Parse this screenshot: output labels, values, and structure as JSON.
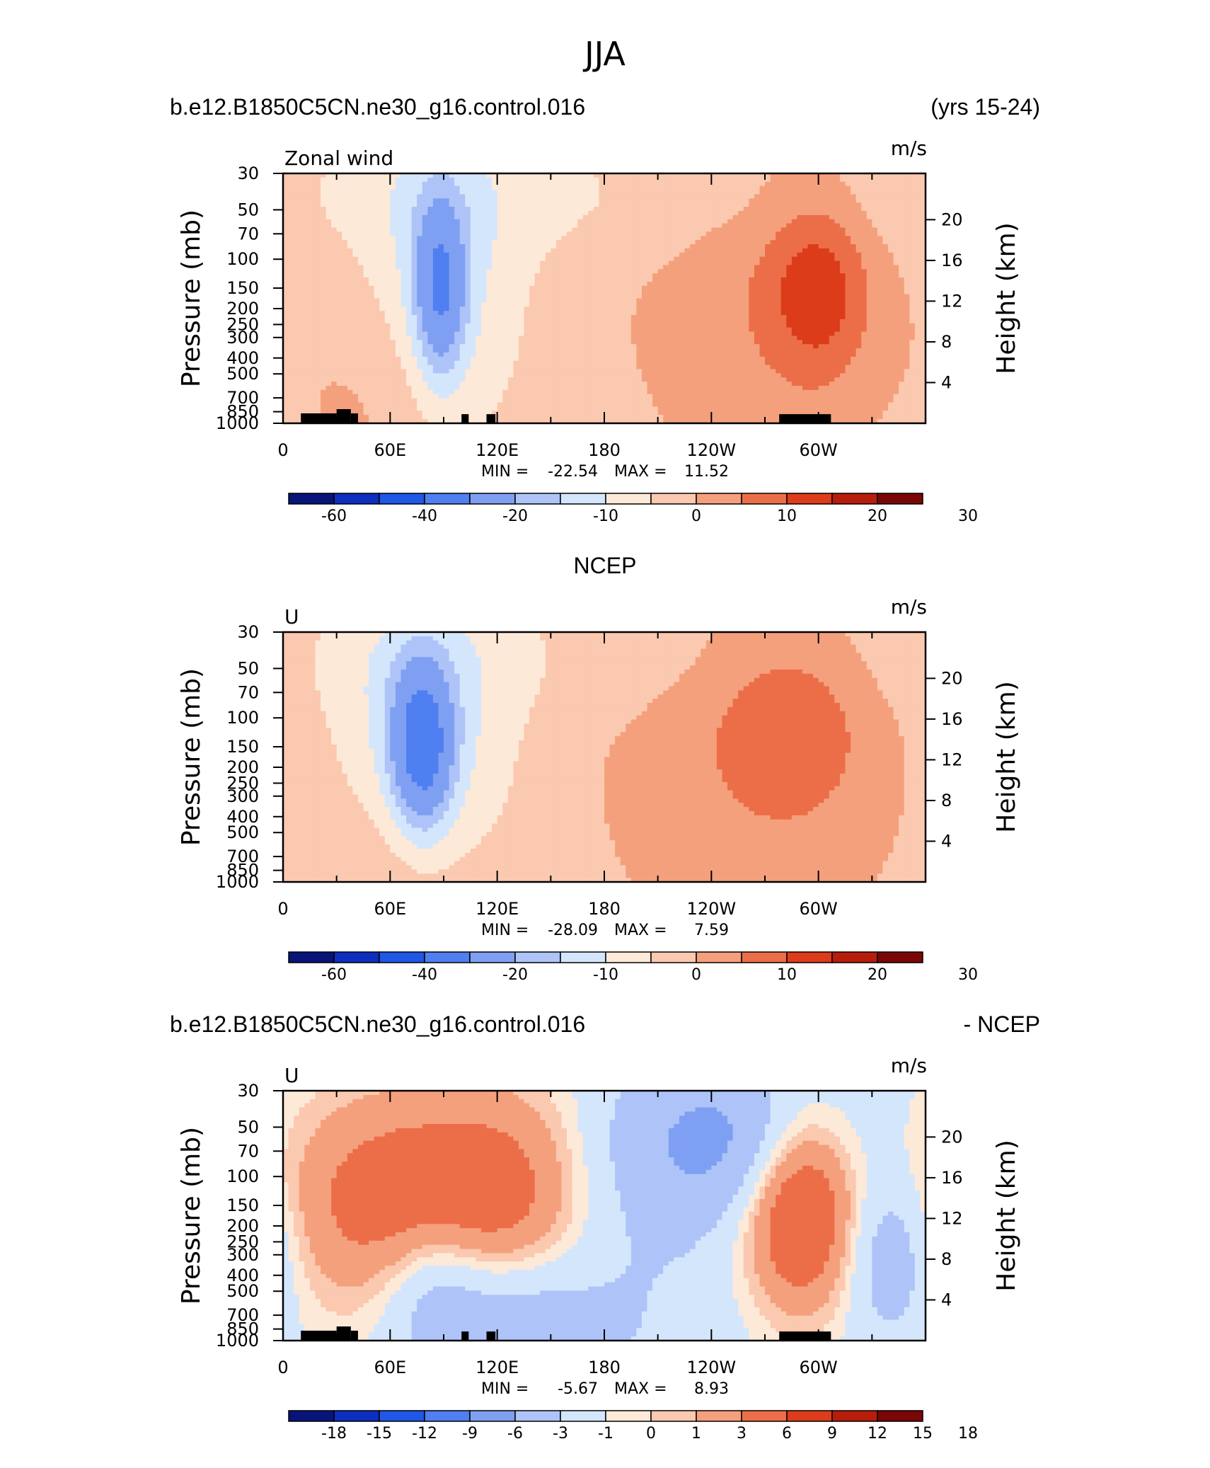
{
  "figure_title": "JJA",
  "colors": {
    "main_scale": [
      "#08147a",
      "#0c2fbf",
      "#1f57e6",
      "#4f7ff0",
      "#7fa0f2",
      "#aec4f8",
      "#d4e6fc",
      "#fde9d7",
      "#fbc9b0",
      "#f5a07c",
      "#ec6e49",
      "#dc3c1a",
      "#b81d0b",
      "#7a0606"
    ],
    "diff_scale": [
      "#08147a",
      "#0c2fbf",
      "#1f57e6",
      "#4f7ff0",
      "#7fa0f2",
      "#aec4f8",
      "#d4e6fc",
      "#fde9d7",
      "#fbc9b0",
      "#f5a07c",
      "#ec6e49",
      "#dc3c1a",
      "#b81d0b",
      "#7a0606"
    ],
    "land": "#000000"
  },
  "chart_data": [
    {
      "type": "heatmap",
      "title_left": "b.e12.B1850C5CN.ne30_g16.control.016",
      "title_center": "",
      "title_right": "(yrs 15-24)",
      "var_label": "Zonal wind",
      "units": "m/s",
      "ylabel": "Pressure (mb)",
      "ylabel_right": "Height (km)",
      "x_ticks": [
        "0",
        "60E",
        "120E",
        "180",
        "120W",
        "60W"
      ],
      "y_ticks": [
        "30",
        "50",
        "70",
        "100",
        "150",
        "200",
        "250",
        "300",
        "400",
        "500",
        "700",
        "850",
        "1000"
      ],
      "y_right_ticks": [
        "4",
        "8",
        "12",
        "16",
        "20"
      ],
      "ylim": [
        1000,
        30
      ],
      "stats": {
        "min_label": "MIN =",
        "min": "-22.54",
        "max_label": "MAX =",
        "max": "11.52"
      },
      "colorbar_labels": [
        "-60",
        "-40",
        "-20",
        "-10",
        "0",
        "10",
        "20",
        "30"
      ],
      "colorbar_levels": [
        -70,
        -60,
        -50,
        -40,
        -30,
        -20,
        -15,
        -10,
        -5,
        0,
        5,
        10,
        15,
        20,
        25,
        30,
        35
      ],
      "blobs": [
        {
          "lon": 88,
          "p": 150,
          "value": -22.5,
          "sigma_lon": 10,
          "sigma_lev": 0.85
        },
        {
          "lon": 88,
          "p": 160,
          "value": -10,
          "sigma_lon": 32,
          "sigma_lev": 1.7
        },
        {
          "lon": 300,
          "p": 150,
          "value": 11.5,
          "sigma_lon": 20,
          "sigma_lev": 0.9
        },
        {
          "lon": 268,
          "p": 130,
          "value": 6,
          "sigma_lon": 52,
          "sigma_lev": 1.9
        },
        {
          "lon": 60,
          "p": 700,
          "value": 5,
          "sigma_lon": 32,
          "sigma_lev": 1.3
        },
        {
          "lon": 200,
          "p": 40,
          "value": -4,
          "sigma_lon": 220,
          "sigma_lev": 0.7
        }
      ],
      "base_value": -2
    },
    {
      "type": "heatmap",
      "title_left": "",
      "title_center": "NCEP",
      "title_right": "",
      "var_label": "U",
      "units": "m/s",
      "ylabel": "Pressure (mb)",
      "ylabel_right": "Height (km)",
      "x_ticks": [
        "0",
        "60E",
        "120E",
        "180",
        "120W",
        "60W"
      ],
      "y_ticks": [
        "30",
        "50",
        "70",
        "100",
        "150",
        "200",
        "250",
        "300",
        "400",
        "500",
        "700",
        "850",
        "1000"
      ],
      "y_right_ticks": [
        "4",
        "8",
        "12",
        "16",
        "20"
      ],
      "ylim": [
        1000,
        30
      ],
      "stats": {
        "min_label": "MIN =",
        "min": "-28.09",
        "max_label": "MAX =",
        "max": "7.59"
      },
      "colorbar_labels": [
        "-60",
        "-40",
        "-20",
        "-10",
        "0",
        "10",
        "20",
        "30"
      ],
      "colorbar_levels": [
        -70,
        -60,
        -50,
        -40,
        -30,
        -20,
        -15,
        -10,
        -5,
        0,
        5,
        10,
        15,
        20,
        25,
        30,
        35
      ],
      "blobs": [
        {
          "lon": 78,
          "p": 150,
          "value": -28,
          "sigma_lon": 12,
          "sigma_lev": 0.8
        },
        {
          "lon": 78,
          "p": 160,
          "value": -12,
          "sigma_lon": 36,
          "sigma_lev": 1.6
        },
        {
          "lon": 285,
          "p": 110,
          "value": 7.5,
          "sigma_lon": 28,
          "sigma_lev": 0.9
        },
        {
          "lon": 262,
          "p": 130,
          "value": 5,
          "sigma_lon": 60,
          "sigma_lev": 1.9
        },
        {
          "lon": 70,
          "p": 700,
          "value": 6,
          "sigma_lon": 30,
          "sigma_lev": 1.2
        },
        {
          "lon": 200,
          "p": 40,
          "value": -3,
          "sigma_lon": 230,
          "sigma_lev": 0.7
        }
      ],
      "base_value": -1.5
    },
    {
      "type": "heatmap",
      "title_left": "b.e12.B1850C5CN.ne30_g16.control.016",
      "title_center": "",
      "title_right": "- NCEP",
      "var_label": "U",
      "units": "m/s",
      "ylabel": "Pressure (mb)",
      "ylabel_right": "Height (km)",
      "x_ticks": [
        "0",
        "60E",
        "120E",
        "180",
        "120W",
        "60W"
      ],
      "y_ticks": [
        "30",
        "50",
        "70",
        "100",
        "150",
        "200",
        "250",
        "300",
        "400",
        "500",
        "700",
        "850",
        "1000"
      ],
      "y_right_ticks": [
        "4",
        "8",
        "12",
        "16",
        "20"
      ],
      "ylim": [
        1000,
        30
      ],
      "stats": {
        "min_label": "MIN =",
        "min": "-5.67",
        "max_label": "MAX =",
        "max": "8.93"
      },
      "colorbar_labels": [
        "-18",
        "-15",
        "-12",
        "-9",
        "-6",
        "-3",
        "-1",
        "0",
        "1",
        "3",
        "6",
        "9",
        "12",
        "15",
        "18"
      ],
      "colorbar_levels": [
        -21,
        -18,
        -15,
        -12,
        -9,
        -6,
        -3,
        -1,
        0,
        1,
        3,
        6,
        9,
        12,
        15,
        18,
        21
      ],
      "blobs": [
        {
          "lon": 60,
          "p": 140,
          "value": 6,
          "sigma_lon": 45,
          "sigma_lev": 1.1
        },
        {
          "lon": 130,
          "p": 150,
          "value": 5,
          "sigma_lon": 35,
          "sigma_lev": 1.2
        },
        {
          "lon": 290,
          "p": 150,
          "value": 8.9,
          "sigma_lon": 22,
          "sigma_lev": 1.0
        },
        {
          "lon": 250,
          "p": 60,
          "value": -5.5,
          "sigma_lon": 45,
          "sigma_lev": 0.8
        },
        {
          "lon": 85,
          "p": 500,
          "value": -4.5,
          "sigma_lon": 22,
          "sigma_lev": 0.8
        },
        {
          "lon": 130,
          "p": 650,
          "value": -4,
          "sigma_lon": 28,
          "sigma_lev": 0.7
        },
        {
          "lon": 340,
          "p": 300,
          "value": -4,
          "sigma_lon": 18,
          "sigma_lev": 0.8
        },
        {
          "lon": 180,
          "p": 400,
          "value": -2,
          "sigma_lon": 40,
          "sigma_lev": 1.5
        }
      ],
      "base_value": -1.5
    }
  ]
}
